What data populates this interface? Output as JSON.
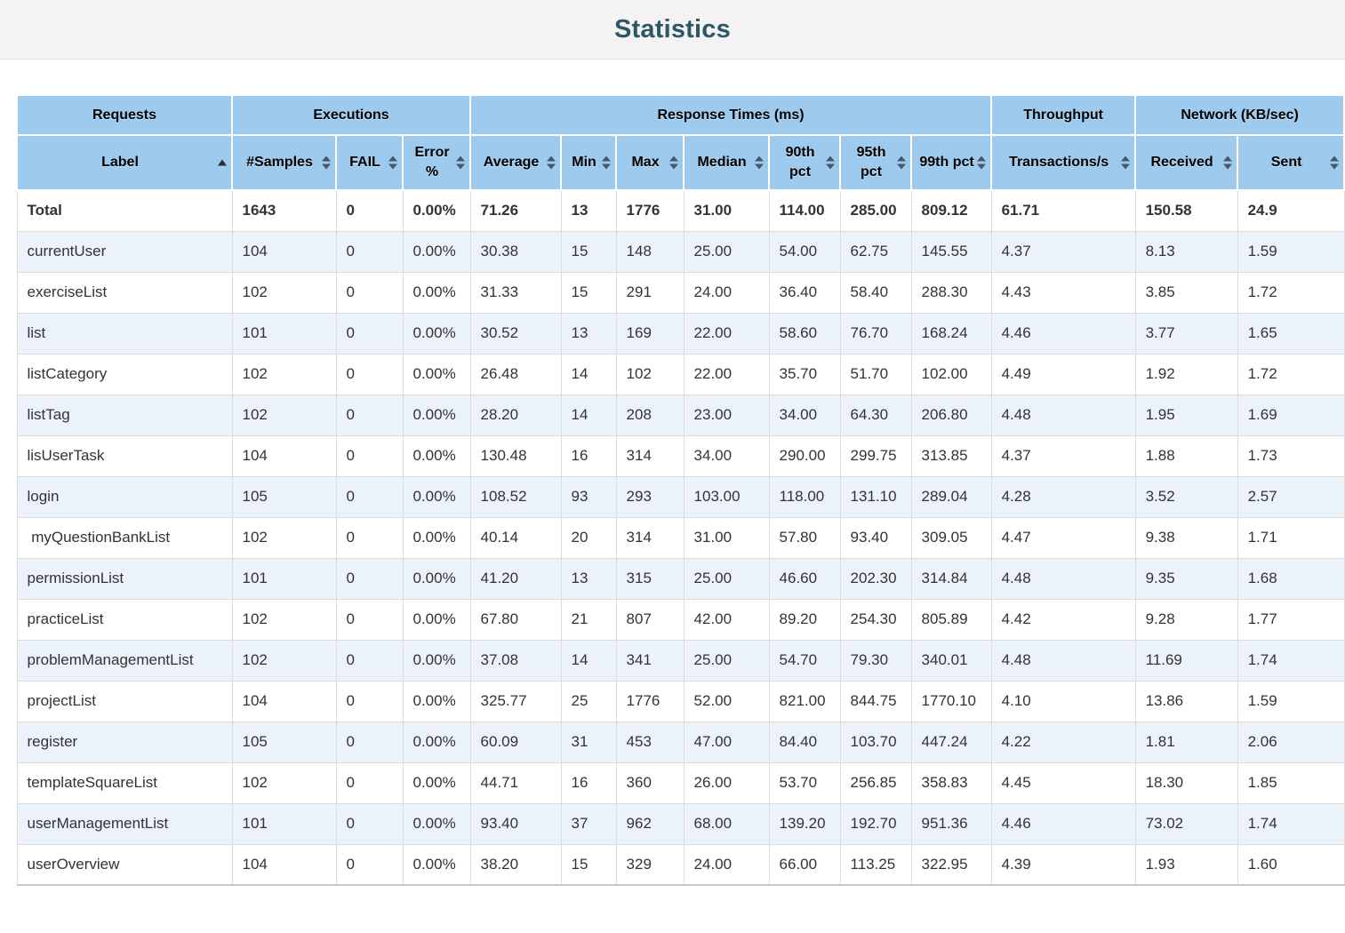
{
  "page": {
    "title": "Statistics"
  },
  "colors": {
    "header_bg": "#9ECAED",
    "stripe": "#EBF2FA",
    "title_color": "#2D5666",
    "sort_icon": "#44566B"
  },
  "table": {
    "groups": [
      {
        "label": "Requests",
        "span": 1
      },
      {
        "label": "Executions",
        "span": 3
      },
      {
        "label": "Response Times (ms)",
        "span": 7
      },
      {
        "label": "Throughput",
        "span": 1
      },
      {
        "label": "Network (KB/sec)",
        "span": 2
      }
    ],
    "columns": [
      {
        "label": "Label",
        "sort": "asc"
      },
      {
        "label": "#Samples",
        "sort": "both"
      },
      {
        "label": "FAIL",
        "sort": "both"
      },
      {
        "label": "Error %",
        "sort": "both"
      },
      {
        "label": "Average",
        "sort": "both"
      },
      {
        "label": "Min",
        "sort": "both"
      },
      {
        "label": "Max",
        "sort": "both"
      },
      {
        "label": "Median",
        "sort": "both"
      },
      {
        "label": "90th pct",
        "sort": "both"
      },
      {
        "label": "95th pct",
        "sort": "both"
      },
      {
        "label": "99th pct",
        "sort": "both"
      },
      {
        "label": "Transactions/s",
        "sort": "both"
      },
      {
        "label": "Received",
        "sort": "both"
      },
      {
        "label": "Sent",
        "sort": "both"
      }
    ],
    "total": {
      "label": "Total",
      "values": [
        "1643",
        "0",
        "0.00%",
        "71.26",
        "13",
        "1776",
        "31.00",
        "114.00",
        "285.00",
        "809.12",
        "61.71",
        "150.58",
        "24.9"
      ]
    },
    "rows": [
      {
        "label": "currentUser",
        "values": [
          "104",
          "0",
          "0.00%",
          "30.38",
          "15",
          "148",
          "25.00",
          "54.00",
          "62.75",
          "145.55",
          "4.37",
          "8.13",
          "1.59"
        ]
      },
      {
        "label": "exerciseList",
        "values": [
          "102",
          "0",
          "0.00%",
          "31.33",
          "15",
          "291",
          "24.00",
          "36.40",
          "58.40",
          "288.30",
          "4.43",
          "3.85",
          "1.72"
        ]
      },
      {
        "label": "list",
        "values": [
          "101",
          "0",
          "0.00%",
          "30.52",
          "13",
          "169",
          "22.00",
          "58.60",
          "76.70",
          "168.24",
          "4.46",
          "3.77",
          "1.65"
        ]
      },
      {
        "label": "listCategory",
        "values": [
          "102",
          "0",
          "0.00%",
          "26.48",
          "14",
          "102",
          "22.00",
          "35.70",
          "51.70",
          "102.00",
          "4.49",
          "1.92",
          "1.72"
        ]
      },
      {
        "label": "listTag",
        "values": [
          "102",
          "0",
          "0.00%",
          "28.20",
          "14",
          "208",
          "23.00",
          "34.00",
          "64.30",
          "206.80",
          "4.48",
          "1.95",
          "1.69"
        ]
      },
      {
        "label": "lisUserTask",
        "values": [
          "104",
          "0",
          "0.00%",
          "130.48",
          "16",
          "314",
          "34.00",
          "290.00",
          "299.75",
          "313.85",
          "4.37",
          "1.88",
          "1.73"
        ]
      },
      {
        "label": "login",
        "values": [
          "105",
          "0",
          "0.00%",
          "108.52",
          "93",
          "293",
          "103.00",
          "118.00",
          "131.10",
          "289.04",
          "4.28",
          "3.52",
          "2.57"
        ]
      },
      {
        "label": " myQuestionBankList",
        "values": [
          "102",
          "0",
          "0.00%",
          "40.14",
          "20",
          "314",
          "31.00",
          "57.80",
          "93.40",
          "309.05",
          "4.47",
          "9.38",
          "1.71"
        ]
      },
      {
        "label": "permissionList",
        "values": [
          "101",
          "0",
          "0.00%",
          "41.20",
          "13",
          "315",
          "25.00",
          "46.60",
          "202.30",
          "314.84",
          "4.48",
          "9.35",
          "1.68"
        ]
      },
      {
        "label": "practiceList",
        "values": [
          "102",
          "0",
          "0.00%",
          "67.80",
          "21",
          "807",
          "42.00",
          "89.20",
          "254.30",
          "805.89",
          "4.42",
          "9.28",
          "1.77"
        ]
      },
      {
        "label": "problemManagementList",
        "values": [
          "102",
          "0",
          "0.00%",
          "37.08",
          "14",
          "341",
          "25.00",
          "54.70",
          "79.30",
          "340.01",
          "4.48",
          "11.69",
          "1.74"
        ]
      },
      {
        "label": "projectList",
        "values": [
          "104",
          "0",
          "0.00%",
          "325.77",
          "25",
          "1776",
          "52.00",
          "821.00",
          "844.75",
          "1770.10",
          "4.10",
          "13.86",
          "1.59"
        ]
      },
      {
        "label": "register",
        "values": [
          "105",
          "0",
          "0.00%",
          "60.09",
          "31",
          "453",
          "47.00",
          "84.40",
          "103.70",
          "447.24",
          "4.22",
          "1.81",
          "2.06"
        ]
      },
      {
        "label": "templateSquareList",
        "values": [
          "102",
          "0",
          "0.00%",
          "44.71",
          "16",
          "360",
          "26.00",
          "53.70",
          "256.85",
          "358.83",
          "4.45",
          "18.30",
          "1.85"
        ]
      },
      {
        "label": "userManagementList",
        "values": [
          "101",
          "0",
          "0.00%",
          "93.40",
          "37",
          "962",
          "68.00",
          "139.20",
          "192.70",
          "951.36",
          "4.46",
          "73.02",
          "1.74"
        ]
      },
      {
        "label": "userOverview",
        "values": [
          "104",
          "0",
          "0.00%",
          "38.20",
          "15",
          "329",
          "24.00",
          "66.00",
          "113.25",
          "322.95",
          "4.39",
          "1.93",
          "1.60"
        ]
      }
    ]
  }
}
